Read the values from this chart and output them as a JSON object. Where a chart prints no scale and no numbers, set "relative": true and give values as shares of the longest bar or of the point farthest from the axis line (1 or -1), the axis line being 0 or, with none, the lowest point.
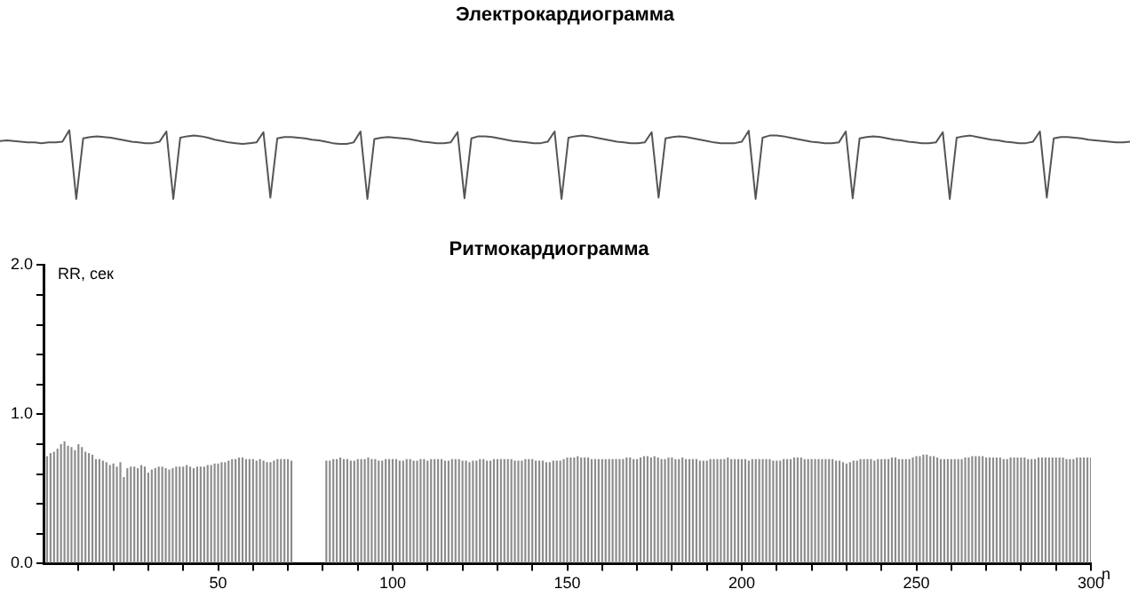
{
  "chart_data": [
    {
      "type": "line",
      "title": "Электрокардиограмма",
      "relative": true,
      "color": "#555555",
      "categories": [
        null,
        null,
        null,
        null,
        null,
        null,
        null,
        null,
        null,
        null,
        null,
        null,
        null,
        null,
        null,
        null,
        null,
        null,
        null,
        null,
        null,
        null,
        null,
        null,
        null,
        null,
        null,
        null,
        null,
        null,
        null,
        null,
        null,
        null,
        null,
        null,
        null,
        null,
        null,
        null,
        null,
        null,
        null,
        null,
        null,
        null,
        null,
        null,
        null,
        null,
        null,
        null,
        null,
        null,
        null,
        null,
        null,
        null,
        null,
        null,
        null,
        null,
        null,
        null,
        null,
        null,
        null,
        null,
        null,
        null,
        null,
        null,
        null,
        null,
        null,
        null,
        null,
        null,
        null,
        null,
        null,
        null,
        null,
        null,
        null,
        null,
        null,
        null,
        null,
        null,
        null,
        null,
        null,
        null,
        null,
        null,
        null,
        null,
        null,
        null,
        null,
        null,
        null,
        null,
        null,
        null,
        null,
        null,
        null,
        null,
        null,
        null,
        null,
        null,
        null,
        null,
        null,
        null,
        null,
        null,
        null,
        null,
        null,
        null,
        null,
        null,
        null,
        null,
        null,
        null,
        null,
        null,
        null,
        null,
        null,
        null,
        null,
        null,
        null,
        null,
        null,
        null,
        null,
        null,
        null,
        null,
        null,
        null,
        null,
        null,
        null,
        null,
        null,
        null,
        null,
        null,
        null,
        null,
        null,
        null,
        null,
        null,
        null,
        null
      ],
      "values": [
        0.84,
        0.85,
        0.84,
        0.83,
        0.82,
        0.82,
        0.81,
        0.82,
        0.82,
        0.83,
        1.0,
        0.0,
        0.88,
        0.9,
        0.91,
        0.9,
        0.89,
        0.87,
        0.85,
        0.83,
        0.82,
        0.81,
        0.81,
        0.83,
        0.98,
        0.0,
        0.89,
        0.91,
        0.92,
        0.91,
        0.89,
        0.86,
        0.84,
        0.82,
        0.81,
        0.8,
        0.81,
        0.82,
        0.97,
        0.02,
        0.88,
        0.9,
        0.9,
        0.89,
        0.88,
        0.86,
        0.85,
        0.83,
        0.81,
        0.8,
        0.8,
        0.82,
        0.98,
        0.0,
        0.87,
        0.89,
        0.9,
        0.89,
        0.88,
        0.87,
        0.85,
        0.83,
        0.82,
        0.81,
        0.81,
        0.82,
        0.97,
        0.01,
        0.88,
        0.91,
        0.91,
        0.9,
        0.88,
        0.86,
        0.84,
        0.83,
        0.82,
        0.81,
        0.81,
        0.83,
        0.98,
        0.0,
        0.89,
        0.91,
        0.92,
        0.91,
        0.89,
        0.87,
        0.85,
        0.83,
        0.82,
        0.81,
        0.81,
        0.82,
        0.97,
        0.02,
        0.88,
        0.9,
        0.91,
        0.9,
        0.88,
        0.86,
        0.84,
        0.82,
        0.81,
        0.81,
        0.81,
        0.83,
        0.99,
        0.0,
        0.89,
        0.92,
        0.92,
        0.91,
        0.89,
        0.87,
        0.85,
        0.83,
        0.82,
        0.81,
        0.81,
        0.82,
        0.98,
        0.01,
        0.88,
        0.9,
        0.91,
        0.9,
        0.88,
        0.86,
        0.85,
        0.83,
        0.82,
        0.81,
        0.81,
        0.82,
        0.97,
        0.0,
        0.89,
        0.91,
        0.92,
        0.9,
        0.88,
        0.86,
        0.85,
        0.83,
        0.82,
        0.81,
        0.81,
        0.83,
        0.98,
        0.02,
        0.88,
        0.9,
        0.9,
        0.89,
        0.88,
        0.86,
        0.85,
        0.84,
        0.83,
        0.82,
        0.82,
        0.83
      ]
    },
    {
      "type": "bar",
      "title": "Ритмокардиограмма",
      "ylabel": "RR, сек",
      "xlabel": "n",
      "color": "#8c8c8c",
      "xlim": [
        0,
        300
      ],
      "ylim": [
        0,
        2
      ],
      "xticks": [
        {
          "value": 10,
          "label": null
        },
        {
          "value": 20,
          "label": null
        },
        {
          "value": 30,
          "label": null
        },
        {
          "value": 40,
          "label": null
        },
        50,
        {
          "value": 60,
          "label": null
        },
        {
          "value": 70,
          "label": null
        },
        {
          "value": 80,
          "label": null
        },
        {
          "value": 90,
          "label": null
        },
        100,
        {
          "value": 110,
          "label": null
        },
        {
          "value": 120,
          "label": null
        },
        {
          "value": 130,
          "label": null
        },
        {
          "value": 140,
          "label": null
        },
        150,
        {
          "value": 160,
          "label": null
        },
        {
          "value": 170,
          "label": null
        },
        {
          "value": 180,
          "label": null
        },
        {
          "value": 190,
          "label": null
        },
        200,
        {
          "value": 210,
          "label": null
        },
        {
          "value": 220,
          "label": null
        },
        {
          "value": 230,
          "label": null
        },
        {
          "value": 240,
          "label": null
        },
        250,
        {
          "value": 260,
          "label": null
        },
        {
          "value": 270,
          "label": null
        },
        {
          "value": 280,
          "label": null
        },
        {
          "value": 290,
          "label": null
        },
        300
      ],
      "yticks": [
        {
          "value": 0,
          "label": "0.0"
        },
        {
          "value": 0.2,
          "label": null
        },
        {
          "value": 0.4,
          "label": null
        },
        {
          "value": 0.6,
          "label": null
        },
        {
          "value": 0.8,
          "label": null
        },
        {
          "value": 1,
          "label": "1.0"
        },
        {
          "value": 1.2,
          "label": null
        },
        {
          "value": 1.4,
          "label": null
        },
        {
          "value": 1.6,
          "label": null
        },
        {
          "value": 1.8,
          "label": null
        },
        {
          "value": 2,
          "label": "2.0"
        }
      ],
      "x": [
        1,
        2,
        3,
        4,
        5,
        6,
        7,
        8,
        9,
        10,
        11,
        12,
        13,
        14,
        15,
        16,
        17,
        18,
        19,
        20,
        21,
        22,
        23,
        24,
        25,
        26,
        27,
        28,
        29,
        30,
        31,
        32,
        33,
        34,
        35,
        36,
        37,
        38,
        39,
        40,
        41,
        42,
        43,
        44,
        45,
        46,
        47,
        48,
        49,
        50,
        51,
        52,
        53,
        54,
        55,
        56,
        57,
        58,
        59,
        60,
        61,
        62,
        63,
        64,
        65,
        66,
        67,
        68,
        69,
        70,
        71,
        72,
        73,
        74,
        75,
        76,
        77,
        78,
        79,
        80,
        81,
        82,
        83,
        84,
        85,
        86,
        87,
        88,
        89,
        90,
        91,
        92,
        93,
        94,
        95,
        96,
        97,
        98,
        99,
        100,
        101,
        102,
        103,
        104,
        105,
        106,
        107,
        108,
        109,
        110,
        111,
        112,
        113,
        114,
        115,
        116,
        117,
        118,
        119,
        120,
        121,
        122,
        123,
        124,
        125,
        126,
        127,
        128,
        129,
        130,
        131,
        132,
        133,
        134,
        135,
        136,
        137,
        138,
        139,
        140,
        141,
        142,
        143,
        144,
        145,
        146,
        147,
        148,
        149,
        150,
        151,
        152,
        153,
        154,
        155,
        156,
        157,
        158,
        159,
        160,
        161,
        162,
        163,
        164,
        165,
        166,
        167,
        168,
        169,
        170,
        171,
        172,
        173,
        174,
        175,
        176,
        177,
        178,
        179,
        180,
        181,
        182,
        183,
        184,
        185,
        186,
        187,
        188,
        189,
        190,
        191,
        192,
        193,
        194,
        195,
        196,
        197,
        198,
        199,
        200,
        201,
        202,
        203,
        204,
        205,
        206,
        207,
        208,
        209,
        210,
        211,
        212,
        213,
        214,
        215,
        216,
        217,
        218,
        219,
        220,
        221,
        222,
        223,
        224,
        225,
        226,
        227,
        228,
        229,
        230,
        231,
        232,
        233,
        234,
        235,
        236,
        237,
        238,
        239,
        240,
        241,
        242,
        243,
        244,
        245,
        246,
        247,
        248,
        249,
        250,
        251,
        252,
        253,
        254,
        255,
        256,
        257,
        258,
        259,
        260,
        261,
        262,
        263,
        264,
        265,
        266,
        267,
        268,
        269,
        270,
        271,
        272,
        273,
        274,
        275,
        276,
        277,
        278,
        279,
        280,
        281,
        282,
        283,
        284,
        285,
        286,
        287,
        288,
        289,
        290,
        291,
        292,
        293,
        294,
        295,
        296,
        297,
        298,
        299,
        300
      ],
      "values": [
        0.72,
        0.74,
        0.75,
        0.77,
        0.8,
        0.82,
        0.79,
        0.78,
        0.76,
        0.8,
        0.78,
        0.75,
        0.74,
        0.73,
        0.7,
        0.7,
        0.69,
        0.68,
        0.66,
        0.67,
        0.65,
        0.68,
        0.58,
        0.64,
        0.65,
        0.65,
        0.64,
        0.66,
        0.65,
        0.61,
        0.63,
        0.64,
        0.65,
        0.65,
        0.64,
        0.63,
        0.64,
        0.65,
        0.65,
        0.65,
        0.66,
        0.65,
        0.64,
        0.65,
        0.65,
        0.65,
        0.66,
        0.66,
        0.67,
        0.67,
        0.68,
        0.68,
        0.69,
        0.7,
        0.7,
        0.71,
        0.71,
        0.7,
        0.7,
        0.7,
        0.69,
        0.7,
        0.69,
        0.68,
        0.68,
        0.69,
        0.7,
        0.7,
        0.7,
        0.7,
        0.69,
        null,
        null,
        null,
        null,
        null,
        null,
        null,
        null,
        null,
        0.69,
        0.69,
        0.7,
        0.7,
        0.71,
        0.7,
        0.7,
        0.69,
        0.69,
        0.7,
        0.7,
        0.7,
        0.71,
        0.7,
        0.7,
        0.69,
        0.69,
        0.7,
        0.7,
        0.7,
        0.7,
        0.69,
        0.69,
        0.7,
        0.7,
        0.69,
        0.69,
        0.7,
        0.7,
        0.69,
        0.7,
        0.7,
        0.7,
        0.7,
        0.69,
        0.69,
        0.7,
        0.7,
        0.7,
        0.69,
        0.69,
        0.68,
        0.69,
        0.69,
        0.7,
        0.7,
        0.69,
        0.69,
        0.7,
        0.7,
        0.7,
        0.7,
        0.7,
        0.7,
        0.69,
        0.69,
        0.69,
        0.7,
        0.7,
        0.7,
        0.69,
        0.69,
        0.69,
        0.68,
        0.68,
        0.69,
        0.69,
        0.69,
        0.7,
        0.71,
        0.71,
        0.71,
        0.72,
        0.71,
        0.71,
        0.71,
        0.7,
        0.7,
        0.7,
        0.7,
        0.7,
        0.7,
        0.7,
        0.7,
        0.7,
        0.7,
        0.71,
        0.71,
        0.7,
        0.7,
        0.71,
        0.72,
        0.72,
        0.71,
        0.72,
        0.71,
        0.7,
        0.7,
        0.71,
        0.71,
        0.7,
        0.7,
        0.71,
        0.7,
        0.7,
        0.7,
        0.7,
        0.69,
        0.69,
        0.69,
        0.7,
        0.7,
        0.7,
        0.7,
        0.7,
        0.71,
        0.7,
        0.7,
        0.7,
        0.7,
        0.7,
        0.69,
        0.7,
        0.7,
        0.7,
        0.7,
        0.7,
        0.7,
        0.69,
        0.69,
        0.69,
        0.7,
        0.7,
        0.7,
        0.71,
        0.71,
        0.71,
        0.7,
        0.7,
        0.7,
        0.7,
        0.7,
        0.7,
        0.7,
        0.7,
        0.7,
        0.69,
        0.69,
        0.68,
        0.67,
        0.68,
        0.69,
        0.69,
        0.7,
        0.7,
        0.7,
        0.7,
        0.69,
        0.7,
        0.7,
        0.7,
        0.7,
        0.71,
        0.71,
        0.7,
        0.7,
        0.7,
        0.7,
        0.71,
        0.72,
        0.72,
        0.73,
        0.73,
        0.72,
        0.72,
        0.71,
        0.7,
        0.7,
        0.7,
        0.7,
        0.7,
        0.7,
        0.7,
        0.71,
        0.71,
        0.72,
        0.72,
        0.72,
        0.72,
        0.71,
        0.71,
        0.71,
        0.71,
        0.71,
        0.7,
        0.7,
        0.71,
        0.71,
        0.71,
        0.71,
        0.71,
        0.7,
        0.7,
        0.7,
        0.71,
        0.71,
        0.71,
        0.71,
        0.71,
        0.71,
        0.71,
        0.71,
        0.7,
        0.7,
        0.7,
        0.71,
        0.71,
        0.71,
        0.71,
        0.71
      ]
    }
  ]
}
